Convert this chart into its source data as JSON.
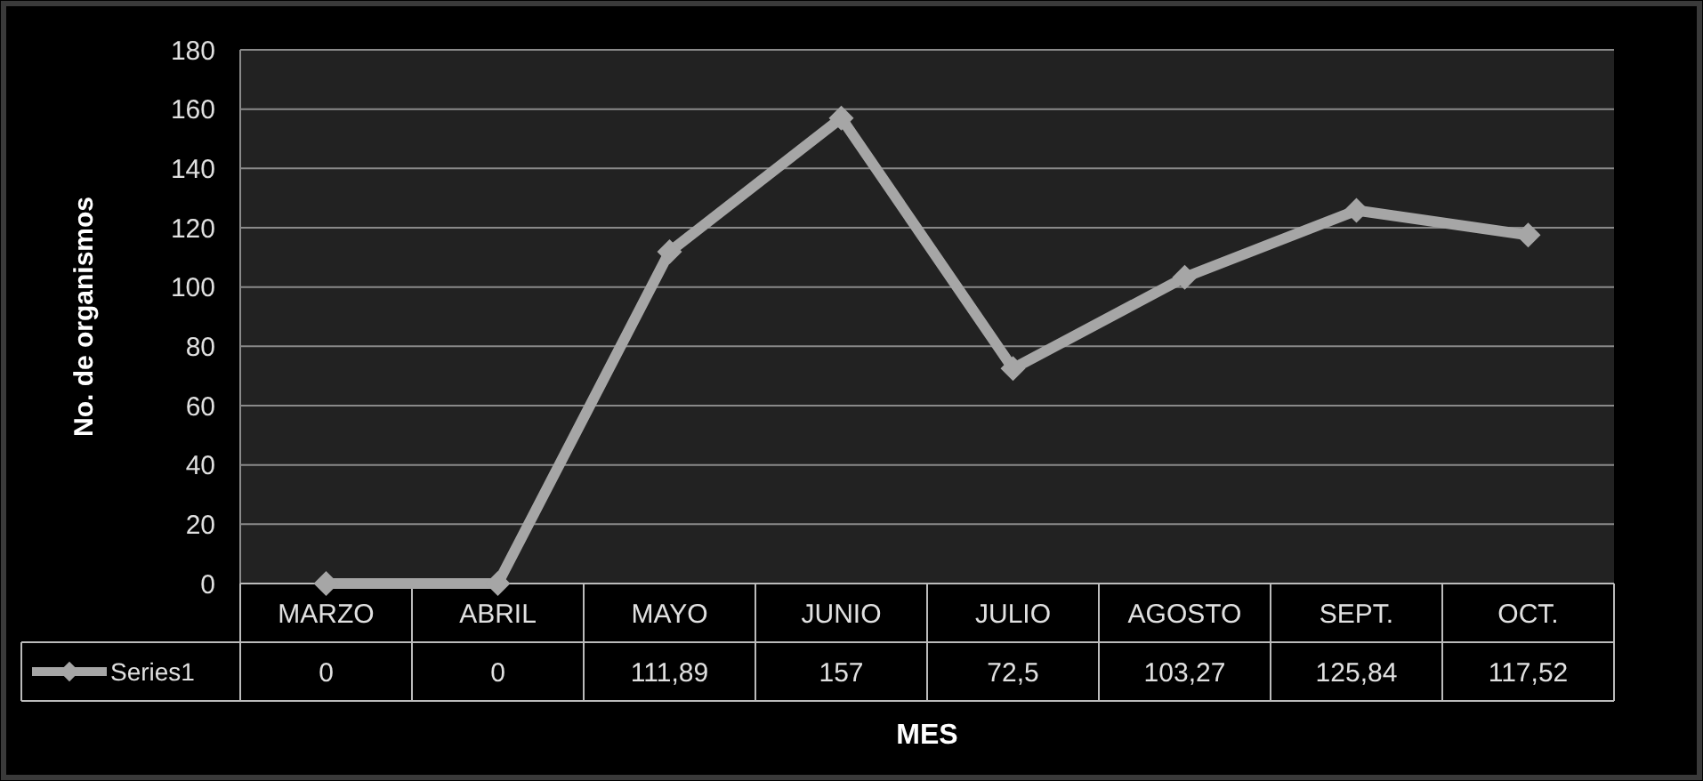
{
  "chart_data": {
    "type": "line",
    "xlabel": "MES",
    "ylabel": "No. de organismos",
    "categories": [
      "MARZO",
      "ABRIL",
      "MAYO",
      "JUNIO",
      "JULIO",
      "AGOSTO",
      "SEPT.",
      "OCT."
    ],
    "series": [
      {
        "name": "Series1",
        "color": "#a6a6a6",
        "values": [
          0,
          0,
          111.89,
          157,
          72.5,
          103.27,
          125.84,
          117.52
        ],
        "value_labels": [
          "0",
          "0",
          "111,89",
          "157",
          "72,5",
          "103,27",
          "125,84",
          "117,52"
        ]
      }
    ],
    "ylim": [
      0,
      180
    ],
    "yticks": [
      0,
      20,
      40,
      60,
      80,
      100,
      120,
      140,
      160,
      180
    ],
    "grid": "y",
    "marker": "diamond",
    "line_style": "solid",
    "legend": "bottom left"
  }
}
